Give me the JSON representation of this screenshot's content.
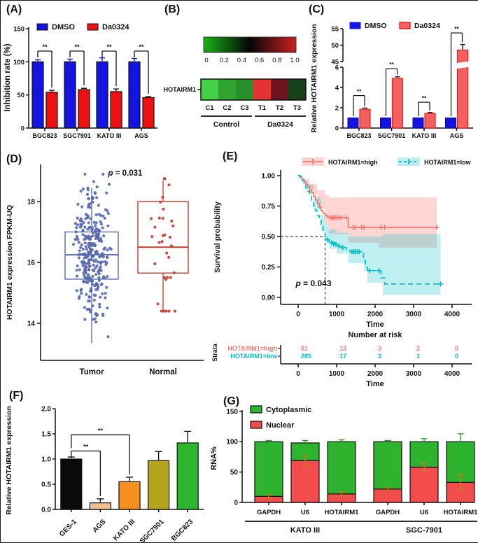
{
  "figure": {
    "panels": [
      {
        "id": "A",
        "label": "(A)"
      },
      {
        "id": "B",
        "label": "(B)"
      },
      {
        "id": "C",
        "label": "(C)"
      },
      {
        "id": "D",
        "label": "(D)"
      },
      {
        "id": "E",
        "label": "(E)"
      },
      {
        "id": "F",
        "label": "(F)"
      },
      {
        "id": "G",
        "label": "(G)"
      }
    ]
  },
  "chart_data": [
    {
      "panel": "A",
      "type": "bar",
      "ylabel": "Inhibition rate (%)",
      "ylim": [
        0,
        150
      ],
      "yticks": [
        0,
        50,
        100,
        150
      ],
      "categories": [
        "BGC823",
        "SGC7901",
        "KATO III",
        "AGS"
      ],
      "series": [
        {
          "name": "DMSO",
          "color": "#1414e0",
          "err_color": "#1414e0",
          "values": [
            100,
            100,
            100,
            100
          ],
          "errors": [
            3,
            4,
            6,
            5
          ]
        },
        {
          "name": "Da0324",
          "color": "#ee1111",
          "err_color": "#111111",
          "values": [
            54,
            58,
            55,
            46
          ],
          "errors": [
            3,
            2,
            4,
            1.5
          ]
        }
      ],
      "significance": [
        "**",
        "**",
        "**",
        "**"
      ]
    },
    {
      "panel": "B",
      "type": "heatmap",
      "row_label": "HOTAIRM1",
      "columns": [
        "C1",
        "C2",
        "C3",
        "T1",
        "T2",
        "T3"
      ],
      "cell_colors": [
        "#45d145",
        "#2fa52f",
        "#298f29",
        "#e33333",
        "#6e1520",
        "#17411a"
      ],
      "groups": [
        {
          "label": "Control",
          "span": [
            0,
            2
          ]
        },
        {
          "label": "Da0324",
          "span": [
            3,
            5
          ]
        }
      ],
      "colorbar": {
        "ticks": [
          "0",
          "0.2",
          "0.4",
          "0.6",
          "0.8",
          "1.0"
        ],
        "gradient": [
          "#18b518",
          "#050505",
          "#cc1f1f"
        ]
      }
    },
    {
      "panel": "C",
      "type": "bar-broken",
      "ylabel": "Relative HOTAIRM1 expression",
      "lower_ticks": [
        0,
        2,
        4,
        6
      ],
      "upper_ticks": [
        45,
        50,
        55
      ],
      "categories": [
        "BGC823",
        "SGC7901",
        "KATO III",
        "AGS"
      ],
      "series": [
        {
          "name": "DMSO",
          "color": "#1414e0",
          "stroke": "#1414e0",
          "values": [
            1,
            1,
            1,
            1
          ],
          "errors": [
            0.06,
            0.06,
            0.06,
            0.06
          ]
        },
        {
          "name": "Da0324",
          "color": "#f46060",
          "stroke": "#e02020",
          "values": [
            1.85,
            4.9,
            1.45,
            48.5
          ],
          "errors": [
            0.12,
            0.15,
            0.08,
            1.7
          ]
        }
      ],
      "significance": [
        "**",
        "**",
        "**",
        "**"
      ],
      "sig_heights": [
        3.2,
        5.85,
        2.55,
        53.7
      ]
    },
    {
      "panel": "D",
      "type": "boxplot-scatter",
      "p_value": "p = 0.031",
      "ylabel": "HOTAIRM1 expression FPKM-UQ",
      "yticks": [
        14,
        16,
        18
      ],
      "groups": [
        {
          "label": "Tumor",
          "color": "#5768ae",
          "n": 300,
          "mean": 16.2,
          "sd": 1.1,
          "clamp": [
            12.9,
            18.9
          ],
          "box": {
            "q1": 15.45,
            "median": 16.25,
            "q3": 17.0,
            "whisker_low": 13.35,
            "whisker_high": 18.45
          }
        },
        {
          "label": "Normal",
          "color": "#c03a30",
          "n": 33,
          "mean": 16.55,
          "sd": 1.25,
          "clamp": [
            14.4,
            18.75
          ],
          "box": {
            "q1": 15.65,
            "median": 16.5,
            "q3": 18.0,
            "whisker_low": 14.4,
            "whisker_high": 18.7
          }
        }
      ]
    },
    {
      "panel": "E",
      "type": "km-survival",
      "ylabel": "Survival probability",
      "xlabel": "Time",
      "ytick_labels": [
        "0.00",
        "0.25",
        "0.50",
        "0.75",
        "1.00"
      ],
      "xticks": [
        0,
        1000,
        2000,
        3000,
        4000
      ],
      "p_value": "p = 0.043",
      "crosshair": {
        "x": 700,
        "y": 0.5
      },
      "series": [
        {
          "name": "HOTAIRM1=high",
          "color": "#F8766D",
          "band_color": "rgba(248,118,109,0.30)",
          "dash": "",
          "steps": [
            [
              0,
              1.0
            ],
            [
              60,
              0.99
            ],
            [
              100,
              0.97
            ],
            [
              150,
              0.95
            ],
            [
              200,
              0.93
            ],
            [
              250,
              0.91
            ],
            [
              300,
              0.88
            ],
            [
              350,
              0.86
            ],
            [
              400,
              0.83
            ],
            [
              450,
              0.8
            ],
            [
              500,
              0.77
            ],
            [
              550,
              0.74
            ],
            [
              600,
              0.71
            ],
            [
              650,
              0.69
            ],
            [
              700,
              0.675
            ],
            [
              750,
              0.66
            ],
            [
              800,
              0.655
            ],
            [
              1300,
              0.655
            ],
            [
              1300,
              0.575
            ],
            [
              3600,
              0.575
            ]
          ],
          "censors": [
            [
              840,
              0.655
            ],
            [
              880,
              0.655
            ],
            [
              920,
              0.655
            ],
            [
              960,
              0.655
            ],
            [
              1010,
              0.655
            ],
            [
              1060,
              0.655
            ],
            [
              1120,
              0.655
            ],
            [
              1250,
              0.655
            ],
            [
              1430,
              0.575
            ],
            [
              1480,
              0.575
            ],
            [
              1650,
              0.575
            ],
            [
              1710,
              0.575
            ],
            [
              2150,
              0.575
            ],
            [
              2250,
              0.575
            ],
            [
              3600,
              0.575
            ]
          ],
          "band_upper": [
            [
              0,
              1.0
            ],
            [
              150,
              0.97
            ],
            [
              300,
              0.93
            ],
            [
              500,
              0.88
            ],
            [
              700,
              0.84
            ],
            [
              800,
              0.82
            ],
            [
              3600,
              0.82
            ]
          ],
          "band_lower": [
            [
              0,
              1.0
            ],
            [
              150,
              0.93
            ],
            [
              300,
              0.85
            ],
            [
              500,
              0.73
            ],
            [
              700,
              0.6
            ],
            [
              800,
              0.52
            ],
            [
              1300,
              0.52
            ],
            [
              1300,
              0.45
            ],
            [
              2100,
              0.45
            ],
            [
              2100,
              0.41
            ],
            [
              3600,
              0.41
            ]
          ]
        },
        {
          "name": "HOTAIRM1=low",
          "color": "#00BFC4",
          "band_color": "rgba(0,191,196,0.25)",
          "dash": "7 5",
          "steps": [
            [
              0,
              1.0
            ],
            [
              50,
              0.985
            ],
            [
              100,
              0.96
            ],
            [
              150,
              0.93
            ],
            [
              200,
              0.9
            ],
            [
              250,
              0.87
            ],
            [
              300,
              0.83
            ],
            [
              350,
              0.79
            ],
            [
              400,
              0.75
            ],
            [
              450,
              0.71
            ],
            [
              500,
              0.67
            ],
            [
              550,
              0.63
            ],
            [
              600,
              0.59
            ],
            [
              650,
              0.55
            ],
            [
              700,
              0.5
            ],
            [
              750,
              0.475
            ],
            [
              800,
              0.46
            ],
            [
              850,
              0.45
            ],
            [
              950,
              0.435
            ],
            [
              1050,
              0.42
            ],
            [
              1150,
              0.41
            ],
            [
              1250,
              0.385
            ],
            [
              1350,
              0.375
            ],
            [
              1700,
              0.375
            ],
            [
              1700,
              0.3
            ],
            [
              1750,
              0.25
            ],
            [
              1800,
              0.22
            ],
            [
              2150,
              0.22
            ],
            [
              2150,
              0.16
            ],
            [
              2250,
              0.11
            ],
            [
              3700,
              0.11
            ]
          ],
          "censors": [
            [
              760,
              0.475
            ],
            [
              870,
              0.45
            ],
            [
              920,
              0.44
            ],
            [
              980,
              0.435
            ],
            [
              1060,
              0.42
            ],
            [
              1160,
              0.41
            ],
            [
              1400,
              0.375
            ],
            [
              1450,
              0.375
            ],
            [
              1490,
              0.375
            ],
            [
              1540,
              0.375
            ],
            [
              1590,
              0.375
            ],
            [
              1850,
              0.22
            ],
            [
              2100,
              0.22
            ],
            [
              3700,
              0.11
            ]
          ],
          "band_upper": [
            [
              0,
              1.0
            ],
            [
              200,
              0.93
            ],
            [
              400,
              0.82
            ],
            [
              600,
              0.68
            ],
            [
              700,
              0.6
            ],
            [
              800,
              0.56
            ],
            [
              1000,
              0.53
            ],
            [
              1300,
              0.5
            ],
            [
              1700,
              0.5
            ],
            [
              2200,
              0.52
            ],
            [
              3700,
              0.52
            ]
          ],
          "band_lower": [
            [
              0,
              1.0
            ],
            [
              200,
              0.88
            ],
            [
              400,
              0.72
            ],
            [
              600,
              0.55
            ],
            [
              700,
              0.44
            ],
            [
              800,
              0.4
            ],
            [
              1000,
              0.36
            ],
            [
              1300,
              0.28
            ],
            [
              1700,
              0.22
            ],
            [
              1800,
              0.12
            ],
            [
              2200,
              0.02
            ],
            [
              3700,
              0.02
            ]
          ]
        }
      ],
      "risk_table": {
        "title": "Number at risk",
        "strata_label": "Strata",
        "xlabel": "Time",
        "xticks": [
          0,
          1000,
          2000,
          3000,
          4000
        ],
        "rows": [
          {
            "name": "HOTAIRM1=high",
            "color": "#F8766D",
            "values": [
              81,
              13,
              3,
              2,
              0
            ]
          },
          {
            "name": "HOTAIRM1=low",
            "color": "#00BFC4",
            "values": [
              285,
              17,
              3,
              1,
              0
            ]
          }
        ]
      }
    },
    {
      "panel": "F",
      "type": "bar-simple",
      "ylabel": "Relative HOTAIRM1 expression",
      "ytick_labels": [
        "0.0",
        "0.5",
        "1.0",
        "1.5",
        "2.0"
      ],
      "categories": [
        "GES-1",
        "AGS",
        "KATO III",
        "SGC7901",
        "BGC823"
      ],
      "values": [
        1.0,
        0.13,
        0.55,
        0.97,
        1.32
      ],
      "errors": [
        0.04,
        0.08,
        0.09,
        0.18,
        0.23
      ],
      "colors": [
        "#0a0a0a",
        "#f2bf8d",
        "#f78f1e",
        "#b5a51e",
        "#2eb52e"
      ],
      "significance": [
        {
          "from": 0,
          "to": 1,
          "label": "**",
          "height": 1.16
        },
        {
          "from": 0,
          "to": 2,
          "label": "**",
          "height": 1.48
        }
      ]
    },
    {
      "panel": "G",
      "type": "stacked-bar",
      "ylabel": "RNA%",
      "yticks": [
        0,
        50,
        100,
        150
      ],
      "legend": [
        {
          "name": "Cytoplasmic",
          "color": "#2db32d"
        },
        {
          "name": "Nuclear",
          "color": "#f24c4c"
        }
      ],
      "err_colors": {
        "top": "#2f9e2f",
        "mid": "#cc7a1e"
      },
      "groups": [
        {
          "label": "KATO III",
          "bars": [
            {
              "label": "GAPDH",
              "nuclear": 10,
              "total": 100,
              "top_err": 2,
              "mid_err": 3
            },
            {
              "label": "U6",
              "nuclear": 69,
              "total": 98,
              "top_err": 4,
              "mid_err": 8
            },
            {
              "label": "HOTAIRM1",
              "nuclear": 14,
              "total": 100,
              "top_err": 3,
              "mid_err": 4
            }
          ]
        },
        {
          "label": "SGC-7901",
          "bars": [
            {
              "label": "GAPDH",
              "nuclear": 22,
              "total": 100,
              "top_err": 2,
              "mid_err": 2
            },
            {
              "label": "U6",
              "nuclear": 58,
              "total": 100,
              "top_err": 5,
              "mid_err": 6
            },
            {
              "label": "HOTAIRM1",
              "nuclear": 33,
              "total": 100,
              "top_err": 13,
              "mid_err": 13
            }
          ]
        }
      ]
    }
  ]
}
